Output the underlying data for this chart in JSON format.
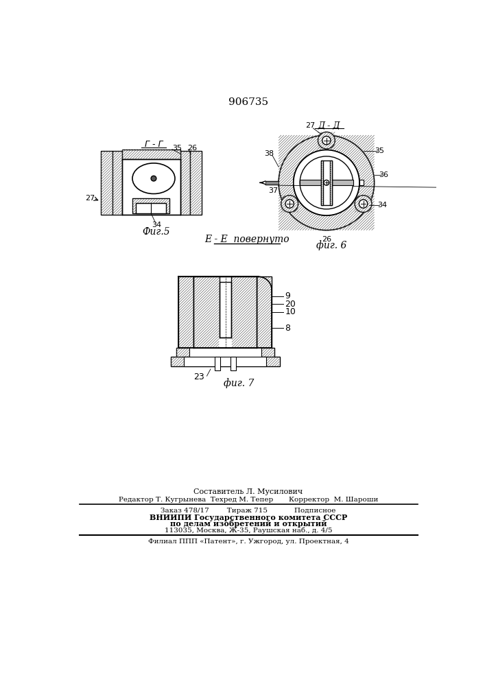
{
  "title": "906735",
  "bg_color": "#ffffff",
  "fig5_label": "Фиг.5",
  "fig6_label": "фиг. 6",
  "fig7_label": "фиг. 7",
  "section_gg": "Г - Г",
  "section_dd": "Д - Д",
  "section_ee": "E - E  повернуто",
  "footer_line1": "Составитель Л. Мусилович",
  "footer_line2": "Редактор Т. Кугрынева  Техред М. Тепер       Корректор  М. Шароши",
  "footer_line3": "Заказ 478/17        Тираж 715            Подписное",
  "footer_line4": "ВНИИПИ Государственного комитета СССР",
  "footer_line5": "по делам изобретений и открытий",
  "footer_line6": "113035, Москва, Ж-35, Раушская наб., д. 4/5",
  "footer_line7": "Филиал ППП «Патент», г. Ужгород, ул. Проектная, 4",
  "hatch_gray": "#aaaaaa",
  "line_color": "#000000"
}
